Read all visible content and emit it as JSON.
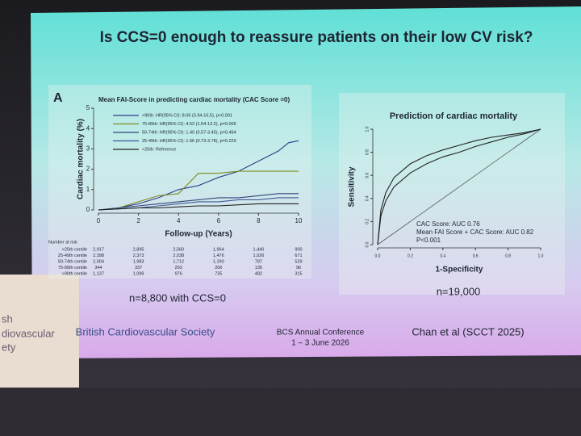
{
  "slide": {
    "title": "Is CCS=0 enough to reassure patients on their low CV risk?",
    "panel_label": "A",
    "left_note": "n=8,800 with CCS=0",
    "right_note": "n=19,000",
    "footer_left": "British Cardiovascular Society",
    "footer_center": [
      "BCS Annual Conference",
      "1 – 3 June 2026"
    ],
    "footer_right": "Chan et al (SCCT 2025)"
  },
  "background_text": [
    "sh",
    "diovascular",
    "ety"
  ],
  "chart_data": [
    {
      "type": "line",
      "title": "Mean FAI-Score in predicting cardiac mortality (CAC Score =0)",
      "x_label": "Follow-up (Years)",
      "y_label": "Cardiac mortality (%)",
      "x": [
        0,
        1,
        2,
        3,
        4,
        5,
        6,
        7,
        8,
        9,
        9.5,
        10
      ],
      "series": [
        {
          "name": ">90th: HR(95% CI): 8.06 (3.94-16.5), p<0.001",
          "color": "#2b3f8c",
          "values": [
            0,
            0.1,
            0.3,
            0.6,
            1.0,
            1.2,
            1.6,
            1.9,
            2.4,
            2.9,
            3.3,
            3.4
          ]
        },
        {
          "name": "75-89th: HR(95% CI): 4.52 (1.54-13.2), p=0.006",
          "color": "#7d8c22",
          "values": [
            0,
            0.1,
            0.4,
            0.7,
            0.8,
            1.8,
            1.8,
            1.9,
            1.9,
            1.9,
            1.9,
            1.9
          ]
        },
        {
          "name": "50-74th: HR(95% CI): 1.40 (0.57-3.45), p=0.464",
          "color": "#33457a",
          "values": [
            0,
            0.1,
            0.2,
            0.3,
            0.4,
            0.5,
            0.6,
            0.6,
            0.7,
            0.8,
            0.8,
            0.8
          ]
        },
        {
          "name": "25-49th: HR(95% CI): 1.66 (0.73-3.78), p=0.229",
          "color": "#3e5a96",
          "values": [
            0,
            0.05,
            0.1,
            0.2,
            0.3,
            0.4,
            0.4,
            0.5,
            0.5,
            0.6,
            0.6,
            0.6
          ]
        },
        {
          "name": "<25th: Reference",
          "color": "#222222",
          "values": [
            0,
            0.05,
            0.1,
            0.1,
            0.15,
            0.2,
            0.2,
            0.25,
            0.3,
            0.3,
            0.3,
            0.3
          ]
        }
      ],
      "xlim": [
        0,
        10
      ],
      "xticks": [
        0,
        2,
        4,
        6,
        8,
        10
      ],
      "ylim": [
        0,
        5
      ],
      "yticks": [
        0,
        1,
        2,
        3,
        4,
        5
      ]
    },
    {
      "type": "line",
      "title": "Prediction of cardiac mortality",
      "x_label": "1-Specificity",
      "y_label": "Sensitivity",
      "annotation": "P<0.001",
      "x": [
        0,
        0.02,
        0.05,
        0.1,
        0.2,
        0.3,
        0.4,
        0.5,
        0.6,
        0.7,
        0.8,
        0.9,
        1
      ],
      "series": [
        {
          "name": "CAC Score: AUC 0.76",
          "color": "#222222",
          "values": [
            0,
            0.25,
            0.38,
            0.5,
            0.62,
            0.7,
            0.76,
            0.8,
            0.85,
            0.89,
            0.93,
            0.96,
            1
          ]
        },
        {
          "name": "Mean FAI Score + CAC Score: AUC 0.82",
          "color": "#222222",
          "values": [
            0,
            0.3,
            0.45,
            0.58,
            0.7,
            0.77,
            0.82,
            0.86,
            0.9,
            0.93,
            0.95,
            0.97,
            1
          ]
        }
      ],
      "xlim": [
        0,
        1
      ],
      "xticks": [
        {
          "value": 0,
          "label": "0.0"
        },
        0.2,
        0.4,
        0.6,
        0.8,
        {
          "value": 1,
          "label": "1.0"
        }
      ],
      "ylim": [
        0,
        1
      ],
      "yticks": [
        {
          "value": 0,
          "label": "0.0"
        },
        0.2,
        0.4,
        0.6,
        0.8,
        {
          "value": 1,
          "label": "1.0"
        }
      ]
    }
  ],
  "risk_table": {
    "header": "Number at risk",
    "rows": [
      [
        "<25th centile",
        "2,917",
        "2,895",
        "2,560",
        "1,964",
        "1,440",
        "900"
      ],
      [
        "25-49th centile",
        "2,398",
        "2,373",
        "2,038",
        "1,476",
        "1,026",
        "671"
      ],
      [
        "50-74th centile",
        "2,004",
        "1,983",
        "1,712",
        "1,190",
        "787",
        "529"
      ],
      [
        "75-89th centile",
        "344",
        "337",
        "293",
        "206",
        "135",
        "96"
      ],
      [
        ">90th centile",
        "1,137",
        "1,099",
        "976",
        "735",
        "482",
        "315"
      ]
    ]
  }
}
